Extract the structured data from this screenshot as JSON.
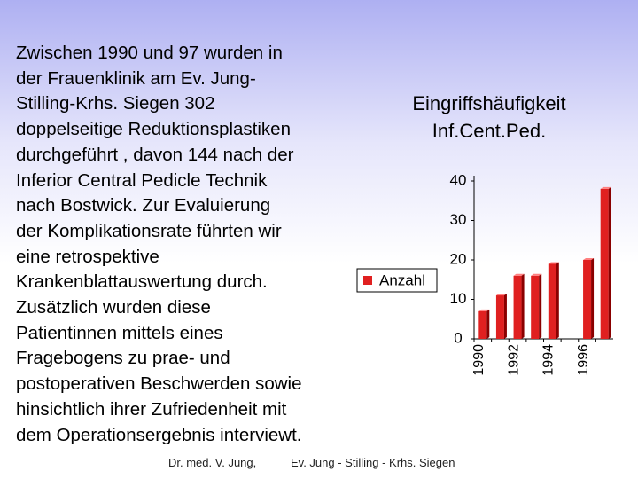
{
  "paragraph": [
    "Zwischen 1990 und 97 wurden in",
    "der Frauenklinik am Ev. Jung-",
    "Stilling-Krhs. Siegen 302",
    "doppelseitige  Reduktionsplastiken",
    "durchgeführt , davon 144 nach der",
    "Inferior Central Pedicle Technik",
    "nach Bostwick.  Zur Evaluierung",
    "der Komplikationsrate führten wir",
    "eine retrospektive",
    "Krankenblattauswertung durch.",
    "Zusätzlich wurden diese",
    "Patientinnen mittels eines",
    "Fragebogens zu prae- und",
    "postoperativen Beschwerden sowie",
    "hinsichtlich ihrer Zufriedenheit mit",
    "dem Operationsergebnis interviewt."
  ],
  "footer": {
    "author": "Dr. med.  V.  Jung,",
    "institution": "Ev. Jung - Stilling - Krhs.  Siegen"
  },
  "chart_data": {
    "type": "bar",
    "title": "Eingriffshäufigkeit",
    "subtitle": "Inf.Cent.Ped.",
    "categories": [
      "1990",
      null,
      "1992",
      null,
      "1994",
      null,
      "1996",
      null
    ],
    "series": [
      {
        "name": "Anzahl",
        "color": "#e02020",
        "values": [
          7,
          11,
          16,
          16,
          19,
          null,
          20,
          38
        ]
      }
    ],
    "ylim": [
      0,
      40
    ],
    "yticks": [
      0,
      10,
      20,
      30,
      40
    ],
    "legend": "left"
  }
}
